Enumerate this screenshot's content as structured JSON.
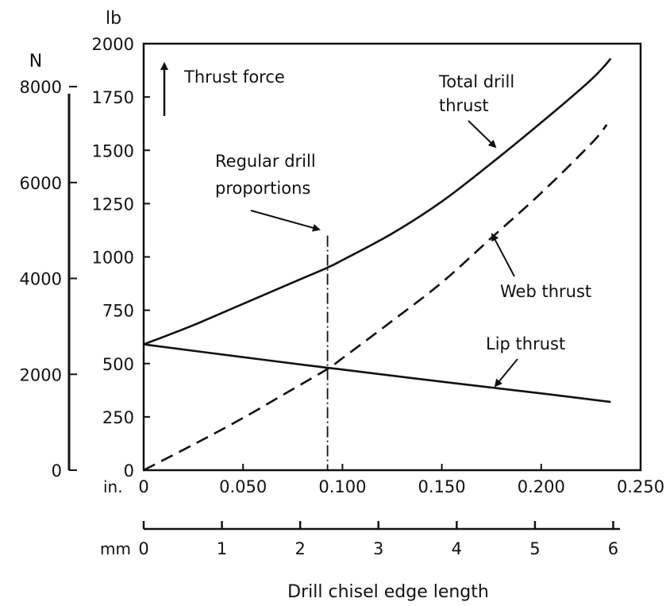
{
  "chart_data": {
    "type": "line",
    "xlabel": "Drill chisel edge length",
    "x_unit_label": "in.",
    "x2_unit_label": "mm",
    "y_unit_label": "lb",
    "y2_unit_label": "N",
    "xlim": [
      0,
      0.25
    ],
    "ylim": [
      0,
      2000
    ],
    "x_ticks": [
      "0",
      "0.050",
      "0.100",
      "0.150",
      "0.200",
      "0.250"
    ],
    "x_tick_values": [
      0,
      0.05,
      0.1,
      0.15,
      0.2,
      0.25
    ],
    "x2_ticks": [
      "0",
      "1",
      "2",
      "3",
      "4",
      "5",
      "6"
    ],
    "x2_tick_values": [
      0,
      1,
      2,
      3,
      4,
      5,
      6
    ],
    "y_ticks": [
      "0",
      "250",
      "500",
      "750",
      "1000",
      "1250",
      "1500",
      "1750",
      "2000"
    ],
    "y_tick_values": [
      0,
      250,
      500,
      750,
      1000,
      1250,
      1500,
      1750,
      2000
    ],
    "y2_ticks": [
      "0",
      "2000",
      "4000",
      "6000",
      "8000"
    ],
    "y2_tick_values": [
      0,
      2000,
      4000,
      6000,
      8000
    ],
    "grid": false,
    "series": [
      {
        "name": "Total drill thrust",
        "style": "solid",
        "x": [
          0,
          0.025,
          0.05,
          0.075,
          0.0925,
          0.1,
          0.125,
          0.15,
          0.175,
          0.2,
          0.225,
          0.235
        ],
        "y": [
          590,
          680,
          780,
          880,
          950,
          985,
          1110,
          1260,
          1440,
          1630,
          1830,
          1930
        ]
      },
      {
        "name": "Web thrust",
        "style": "dashed",
        "x": [
          0,
          0.025,
          0.05,
          0.075,
          0.0925,
          0.1,
          0.125,
          0.15,
          0.175,
          0.2,
          0.225,
          0.233
        ],
        "y": [
          0,
          120,
          245,
          380,
          475,
          525,
          700,
          880,
          1090,
          1300,
          1530,
          1620
        ]
      },
      {
        "name": "Lip thrust",
        "style": "solid",
        "x": [
          0,
          0.05,
          0.0925,
          0.1,
          0.15,
          0.2,
          0.235
        ],
        "y": [
          590,
          530,
          480,
          472,
          415,
          360,
          320
        ]
      }
    ],
    "vline": {
      "x": 0.0925,
      "y_top": 1100,
      "label": "Regular drill proportions"
    },
    "annotations": {
      "thrust_force": "Thrust force",
      "regular_line1": "Regular drill",
      "regular_line2": "proportions",
      "total_line1": "Total drill",
      "total_line2": "thrust",
      "web": "Web thrust",
      "lip": "Lip thrust"
    }
  }
}
